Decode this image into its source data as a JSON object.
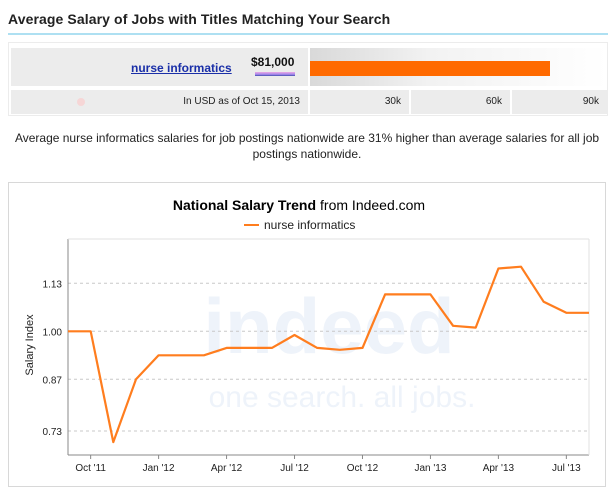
{
  "header": {
    "title": "Average Salary of Jobs with Titles Matching Your Search"
  },
  "salary": {
    "job_title": "nurse informatics",
    "amount": "$81,000",
    "value": 81000,
    "scale_max": 90000,
    "note": "In USD as of Oct 15, 2013",
    "ticks": [
      "30k",
      "60k",
      "90k"
    ],
    "bar_color": "#ff6a00"
  },
  "summary": "Average nurse informatics salaries for job postings nationwide are 31% higher than average salaries for all job postings nationwide.",
  "chart_data": {
    "type": "line",
    "title_bold": "National Salary Trend",
    "title_rest": "from Indeed.com",
    "ylabel": "Salary Index",
    "legend_position": "top-center",
    "grid": true,
    "ylim": [
      0.665,
      1.25
    ],
    "y_ticks": [
      0.73,
      0.87,
      1.0,
      1.13
    ],
    "y_tick_labels": [
      "0.73",
      "0.87",
      "1.00",
      "1.13"
    ],
    "x_tick_labels": [
      "Oct '11",
      "Jan '12",
      "Apr '12",
      "Jul '12",
      "Oct '12",
      "Jan '13",
      "Apr '13",
      "Jul '13"
    ],
    "watermark_word": "indeed",
    "watermark_tagline": "one search. all jobs.",
    "series": [
      {
        "name": "nurse informatics",
        "color": "#ff7d1e",
        "x": [
          "Sep '11",
          "Oct '11",
          "Nov '11",
          "Dec '11",
          "Jan '12",
          "Feb '12",
          "Mar '12",
          "Apr '12",
          "May '12",
          "Jun '12",
          "Jul '12",
          "Aug '12",
          "Sep '12",
          "Oct '12",
          "Nov '12",
          "Dec '12",
          "Jan '13",
          "Feb '13",
          "Mar '13",
          "Apr '13",
          "May '13",
          "Jun '13",
          "Jul '13",
          "Aug '13"
        ],
        "values": [
          1.0,
          1.0,
          0.7,
          0.87,
          0.935,
          0.935,
          0.935,
          0.955,
          0.955,
          0.955,
          0.99,
          0.955,
          0.95,
          0.955,
          1.1,
          1.1,
          1.1,
          1.015,
          1.01,
          1.17,
          1.175,
          1.08,
          1.05,
          1.05
        ]
      }
    ]
  }
}
